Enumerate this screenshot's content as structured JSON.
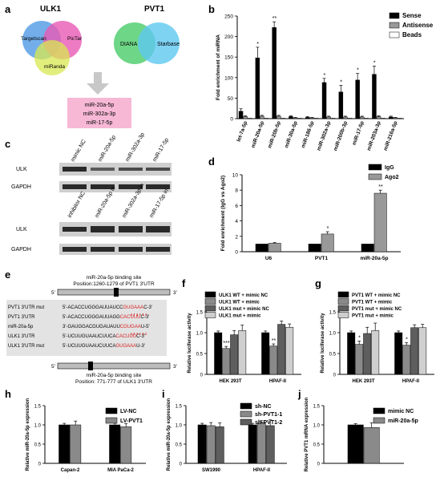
{
  "panels": {
    "a": {
      "letter": "a",
      "ulk1_title": "ULK1",
      "pvt1_title": "PVT1",
      "venn_ulk1": [
        "Targetscan",
        "PicTar",
        "miRanda"
      ],
      "venn_pvt1": [
        "DIANA",
        "Starbase"
      ],
      "mirnas": [
        "miR-20a-5p",
        "miR-302a-3p",
        "miR-17-5p"
      ],
      "colors": {
        "targetscan": "#5aa0e8",
        "pictar": "#e85ab4",
        "miranda": "#d8e850",
        "diana": "#5ed27a",
        "starbase": "#5ec8f0",
        "box": "#f7b8d6"
      }
    },
    "b": {
      "letter": "b"
    },
    "c": {
      "letter": "c",
      "top_lanes": [
        "mimic NC",
        "miR-20a-5p",
        "miR-302a-3p",
        "miR-17-5p"
      ],
      "bottom_lanes": [
        "inhibitor NC",
        "miR-20a-5p in",
        "miR-302a-3p in",
        "miR-17-5p in"
      ],
      "rows": [
        "ULK",
        "GAPDH"
      ]
    },
    "d": {
      "letter": "d"
    },
    "e": {
      "letter": "e",
      "top_site_1": "miR-20a-5p binding site",
      "top_site_2": "Position:1260-1279 of PVT1 3'UTR",
      "bottom_site_1": "miR-20a-5p binding site",
      "bottom_site_2": "Position: 771-777 of ULK1 3'UTR",
      "end5": "5'",
      "end3": "3'",
      "seqs": [
        {
          "label": "PVT1 3'UTR mut",
          "seq": "5'-ACACCUGGGAUUAUCC",
          "hl": "GUGAAA",
          "tail": "C-3'"
        },
        {
          "label": "PVT1 3'UTR",
          "seq": "5'-ACACCUGGGAUUAGG",
          "hl": "CACUUU",
          "tail": "C-3'"
        },
        {
          "label": "miR-20a-5p",
          "seq": "3'-GAUGGACGUGAUAUU",
          "hl": "CGUGAA",
          "tail": "U-5'"
        },
        {
          "label": "ULK1 3'UTR",
          "seq": "5'-UCUUGUAAUCUUCA",
          "hl": "CACUUU",
          "tail": "C-3'"
        },
        {
          "label": "ULK1 3'UTR mut",
          "seq": "5'-UCUUGUAAUCUUCA",
          "hl": "GUGAAA",
          "tail": "U-3'"
        }
      ]
    },
    "f": {
      "letter": "f"
    },
    "g": {
      "letter": "g"
    },
    "h": {
      "letter": "h"
    },
    "i": {
      "letter": "i"
    },
    "j": {
      "letter": "j"
    }
  },
  "chart_data": [
    {
      "id": "b",
      "type": "bar",
      "ylabel": "Fold enrichment of miRNA",
      "ylim": [
        0,
        250
      ],
      "yticks": [
        0,
        50,
        100,
        150,
        200,
        250
      ],
      "categories": [
        "let-7a-5p",
        "miR-20a-5p",
        "miR-20b-5p",
        "miR-30a-5p",
        "miR-186-5p",
        "miR-302a-3p",
        "miR-200b-3p",
        "miR-17-5p",
        "miR-203a-3p",
        "miR-216a-5p"
      ],
      "series": [
        {
          "name": "Sense",
          "color": "#000000",
          "values": [
            18,
            148,
            222,
            5,
            3,
            88,
            65,
            94,
            108,
            4
          ],
          "errors": [
            6,
            26,
            14,
            2,
            2,
            10,
            16,
            16,
            20,
            2
          ]
        },
        {
          "name": "Antisense",
          "color": "#999999",
          "values": [
            5,
            6,
            6,
            2,
            2,
            4,
            4,
            4,
            5,
            2
          ],
          "errors": [
            2,
            2,
            2,
            1,
            1,
            2,
            2,
            2,
            2,
            1
          ]
        },
        {
          "name": "Beads",
          "color": "#ffffff",
          "values": [
            1,
            1,
            1,
            1,
            1,
            1,
            1,
            1,
            1,
            1
          ],
          "errors": [
            0,
            0,
            0,
            0,
            0,
            0,
            0,
            0,
            0,
            0
          ]
        }
      ],
      "sig": [
        "",
        "*",
        "**",
        "",
        "",
        "*",
        "*",
        "*",
        "*",
        ""
      ],
      "legend": "top-right"
    },
    {
      "id": "d",
      "type": "bar",
      "ylabel": "Fold enrichment (IgG vs Ago2)",
      "ylim": [
        0,
        10
      ],
      "yticks": [
        0,
        2,
        4,
        6,
        8,
        10
      ],
      "categories": [
        "U6",
        "PVT1",
        "miR-20a-5p"
      ],
      "series": [
        {
          "name": "IgG",
          "color": "#000000",
          "values": [
            1,
            1,
            1
          ],
          "errors": [
            0,
            0,
            0
          ]
        },
        {
          "name": "Ago2",
          "color": "#999999",
          "values": [
            1.1,
            2.3,
            7.6
          ],
          "errors": [
            0.1,
            0.3,
            0.4
          ]
        }
      ],
      "sig": [
        "",
        "*",
        "**"
      ],
      "legend": "top-left"
    },
    {
      "id": "f",
      "type": "bar",
      "ylabel": "Relative luciferase activity",
      "ylim": [
        0,
        1.5
      ],
      "yticks": [
        0,
        0.5,
        1.0,
        1.5
      ],
      "categories": [
        "HEK 293T",
        "HPAF-II"
      ],
      "series": [
        {
          "name": "ULK1 WT + mimic NC",
          "color": "#000000",
          "values": [
            1.0,
            1.0
          ],
          "errors": [
            0.04,
            0.04
          ]
        },
        {
          "name": "ULK1 WT + mimic",
          "color": "#8a8a8a",
          "values": [
            0.62,
            0.68
          ],
          "errors": [
            0.05,
            0.05
          ]
        },
        {
          "name": "ULK1 mut + mimic NC",
          "color": "#5e5e5e",
          "values": [
            0.95,
            1.2
          ],
          "errors": [
            0.1,
            0.08
          ]
        },
        {
          "name": "ULK1 mut + mimic",
          "color": "#cfcfcf",
          "values": [
            1.05,
            1.13
          ],
          "errors": [
            0.13,
            0.08
          ]
        }
      ],
      "sig": [
        [
          "",
          "***",
          "",
          ""
        ],
        [
          "",
          "**",
          "",
          ""
        ]
      ],
      "legend": "top"
    },
    {
      "id": "g",
      "type": "bar",
      "ylabel": "Relative luciferase activity",
      "ylim": [
        0,
        1.5
      ],
      "yticks": [
        0,
        0.5,
        1.0,
        1.5
      ],
      "categories": [
        "HEK 293T",
        "HPAF-II"
      ],
      "series": [
        {
          "name": "PVT1 WT + mimic NC",
          "color": "#000000",
          "values": [
            1.0,
            1.0
          ],
          "errors": [
            0.04,
            0.04
          ]
        },
        {
          "name": "PVT1 WT + mimic",
          "color": "#8a8a8a",
          "values": [
            0.72,
            0.7
          ],
          "errors": [
            0.08,
            0.06
          ]
        },
        {
          "name": "PVT1 mut + mimic NC",
          "color": "#5e5e5e",
          "values": [
            0.98,
            1.12
          ],
          "errors": [
            0.15,
            0.07
          ]
        },
        {
          "name": "PVT1 mut + mimic",
          "color": "#cfcfcf",
          "values": [
            1.05,
            1.12
          ],
          "errors": [
            0.18,
            0.08
          ]
        }
      ],
      "sig": [
        [
          "",
          "*",
          "",
          ""
        ],
        [
          "",
          "*",
          "",
          ""
        ]
      ],
      "legend": "top"
    },
    {
      "id": "h",
      "type": "bar",
      "ylabel": "Relative miR-20a-5p expression",
      "ylim": [
        0,
        1.5
      ],
      "yticks": [
        0,
        0.5,
        1.0,
        1.5
      ],
      "categories": [
        "Capan-2",
        "MIA PaCa-2"
      ],
      "series": [
        {
          "name": "LV-NC",
          "color": "#000000",
          "values": [
            1.0,
            1.0
          ],
          "errors": [
            0.04,
            0.04
          ]
        },
        {
          "name": "LV-PVT1",
          "color": "#8a8a8a",
          "values": [
            1.0,
            0.95
          ],
          "errors": [
            0.1,
            0.08
          ]
        }
      ],
      "legend": "top-right"
    },
    {
      "id": "i",
      "type": "bar",
      "ylabel": "Relative miR-20a-5p expression",
      "ylim": [
        0,
        1.5
      ],
      "yticks": [
        0,
        0.5,
        1.0,
        1.5
      ],
      "categories": [
        "SW1990",
        "HPAF-II"
      ],
      "series": [
        {
          "name": "sh-NC",
          "color": "#000000",
          "values": [
            1.0,
            1.0
          ],
          "errors": [
            0.04,
            0.04
          ]
        },
        {
          "name": "sh-PVT1-1",
          "color": "#8a8a8a",
          "values": [
            0.98,
            1.05
          ],
          "errors": [
            0.08,
            0.06
          ]
        },
        {
          "name": "sh-PVT1-2",
          "color": "#5e5e5e",
          "values": [
            0.95,
            0.98
          ],
          "errors": [
            0.1,
            0.15
          ]
        }
      ],
      "legend": "top-right"
    },
    {
      "id": "j",
      "type": "bar",
      "ylabel": "Relative PVT1 mRNA expression",
      "ylim": [
        0,
        1.5
      ],
      "yticks": [
        0,
        0.5,
        1.0,
        1.5
      ],
      "categories": [
        ""
      ],
      "series": [
        {
          "name": "mimic NC",
          "color": "#000000",
          "values": [
            1.0
          ],
          "errors": [
            0.03
          ]
        },
        {
          "name": "miR-20a-5p",
          "color": "#8a8a8a",
          "values": [
            0.93
          ],
          "errors": [
            0.12
          ]
        }
      ],
      "legend": "top-right"
    }
  ]
}
